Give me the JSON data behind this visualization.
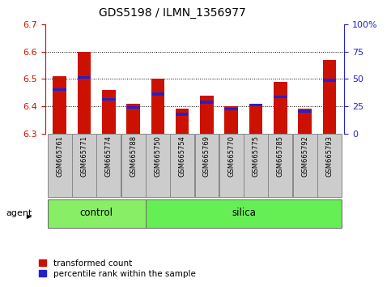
{
  "title": "GDS5198 / ILMN_1356977",
  "samples": [
    "GSM665761",
    "GSM665771",
    "GSM665774",
    "GSM665788",
    "GSM665750",
    "GSM665754",
    "GSM665769",
    "GSM665770",
    "GSM665775",
    "GSM665785",
    "GSM665792",
    "GSM665793"
  ],
  "groups": [
    "control",
    "control",
    "control",
    "control",
    "silica",
    "silica",
    "silica",
    "silica",
    "silica",
    "silica",
    "silica",
    "silica"
  ],
  "transformed_count": [
    6.51,
    6.6,
    6.46,
    6.41,
    6.5,
    6.39,
    6.44,
    6.4,
    6.41,
    6.49,
    6.39,
    6.57
  ],
  "percentile_rank": [
    6.455,
    6.5,
    6.42,
    6.39,
    6.44,
    6.365,
    6.41,
    6.385,
    6.4,
    6.43,
    6.375,
    6.49
  ],
  "y_min": 6.3,
  "y_max": 6.7,
  "y_ticks": [
    6.3,
    6.4,
    6.5,
    6.6,
    6.7
  ],
  "y2_ticks": [
    0,
    25,
    50,
    75,
    100
  ],
  "bar_color": "#cc1100",
  "percentile_color": "#2222cc",
  "control_color": "#88ee66",
  "silica_color": "#66ee55",
  "title_color": "#000000",
  "left_tick_color": "#cc1100",
  "right_tick_color": "#2222cc",
  "label_bg_color": "#cccccc",
  "label_edge_color": "#888888",
  "agent_label": "agent",
  "legend_entries": [
    "transformed count",
    "percentile rank within the sample"
  ],
  "bar_width": 0.55,
  "n_control": 4,
  "n_total": 12
}
